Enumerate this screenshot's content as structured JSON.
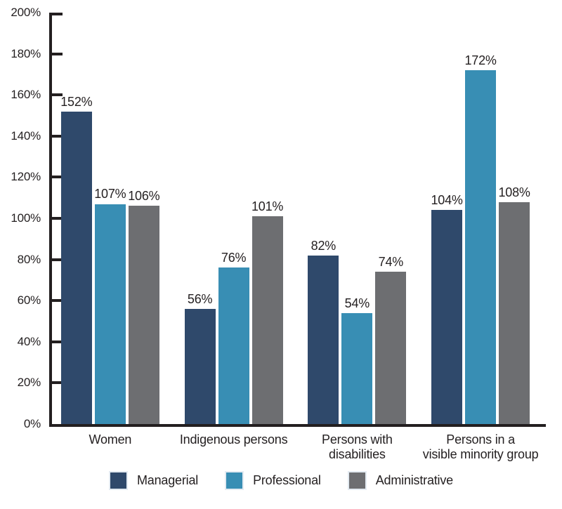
{
  "chart_data": {
    "type": "bar",
    "title": "",
    "xlabel": "",
    "ylabel": "",
    "categories": [
      "Women",
      "Indigenous persons",
      "Persons with disabilities",
      "Persons in a visible minority group"
    ],
    "category_label_lines": [
      [
        "Women"
      ],
      [
        "Indigenous persons"
      ],
      [
        "Persons with",
        "disabilities"
      ],
      [
        "Persons in a",
        "visible minority group"
      ]
    ],
    "series": [
      {
        "name": "Managerial",
        "color": "#2F496B",
        "values": [
          152,
          56,
          82,
          104
        ],
        "labels": [
          "152%",
          "56%",
          "82%",
          "104%"
        ]
      },
      {
        "name": "Professional",
        "color": "#388EB4",
        "values": [
          107,
          76,
          54,
          172
        ],
        "labels": [
          "107%",
          "76%",
          "54%",
          "172%"
        ]
      },
      {
        "name": "Administrative",
        "color": "#6D6E71",
        "values": [
          106,
          101,
          74,
          108
        ],
        "labels": [
          "106%",
          "101%",
          "74%",
          "108%"
        ]
      }
    ],
    "ylim": [
      0,
      200
    ],
    "ytick_step": 20,
    "ytick_labels": [
      "0%",
      "20%",
      "40%",
      "60%",
      "80%",
      "100%",
      "120%",
      "140%",
      "160%",
      "180%",
      "200%"
    ],
    "grid": false,
    "legend_position": "bottom",
    "axis_color": "#231F20",
    "text_color": "#231F20",
    "background_color": "#FFFFFF"
  }
}
